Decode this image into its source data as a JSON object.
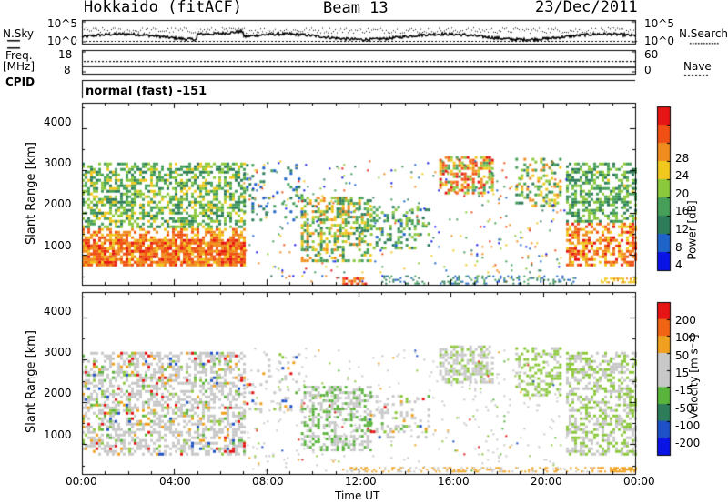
{
  "header": {
    "radar": "Hokkaido (fitACF)",
    "beam": "Beam 13",
    "date": "23/Dec/2011"
  },
  "status_panels": {
    "left_labels": {
      "nsky": "N.Sky",
      "freq": "Freq.",
      "freq_unit": "[MHz]",
      "cpid": "CPID"
    },
    "right_labels": {
      "nsearch": "N.Search",
      "nave": "Nave"
    },
    "nsky_ticks": [
      "10^5",
      "10^0"
    ],
    "freq_ticks": [
      "18",
      "8"
    ],
    "right_noise_ticks": [
      "10^5",
      "10^0"
    ],
    "nave_ticks": [
      "60",
      "0"
    ],
    "cpid_text": "normal (fast) -151"
  },
  "colors": {
    "power_scale": [
      "#0a14e6",
      "#1e64c8",
      "#2e7d5a",
      "#46a05a",
      "#8cc83c",
      "#f0c81e",
      "#f08c1e",
      "#f05014",
      "#e61414"
    ],
    "velocity_scale": [
      "#0a14e6",
      "#1e50c8",
      "#2e7d5a",
      "#5ab43c",
      "#c8c8c8",
      "#c8c8c8",
      "#f0a01e",
      "#f06414",
      "#e61414"
    ]
  },
  "chart_data": [
    {
      "type": "heatmap",
      "panel": "power",
      "ylabel": "Slant Range [km]",
      "yticks": [
        "1000",
        "2000",
        "3000",
        "4000"
      ],
      "ylim": [
        300,
        4600
      ],
      "xlim_hours": [
        0,
        24
      ],
      "colorbar": {
        "label": "Power [dB]",
        "ticks": [
          "4",
          "8",
          "12",
          "16",
          "20",
          "24",
          "28"
        ],
        "range": [
          0,
          32
        ]
      }
    },
    {
      "type": "heatmap",
      "panel": "velocity",
      "ylabel": "Slant Range [km]",
      "yticks": [
        "1000",
        "2000",
        "3000",
        "4000"
      ],
      "ylim": [
        300,
        4600
      ],
      "xlim_hours": [
        0,
        24
      ],
      "colorbar": {
        "label": "Velocity [m s⁻¹]",
        "ticks": [
          "200",
          "100",
          "50",
          "15",
          "-15",
          "-50",
          "-100",
          "-200"
        ]
      }
    }
  ],
  "xaxis": {
    "ticks": [
      "00:00",
      "04:00",
      "08:00",
      "12:00",
      "16:00",
      "20:00",
      "00:00"
    ],
    "label": "Time UT"
  }
}
